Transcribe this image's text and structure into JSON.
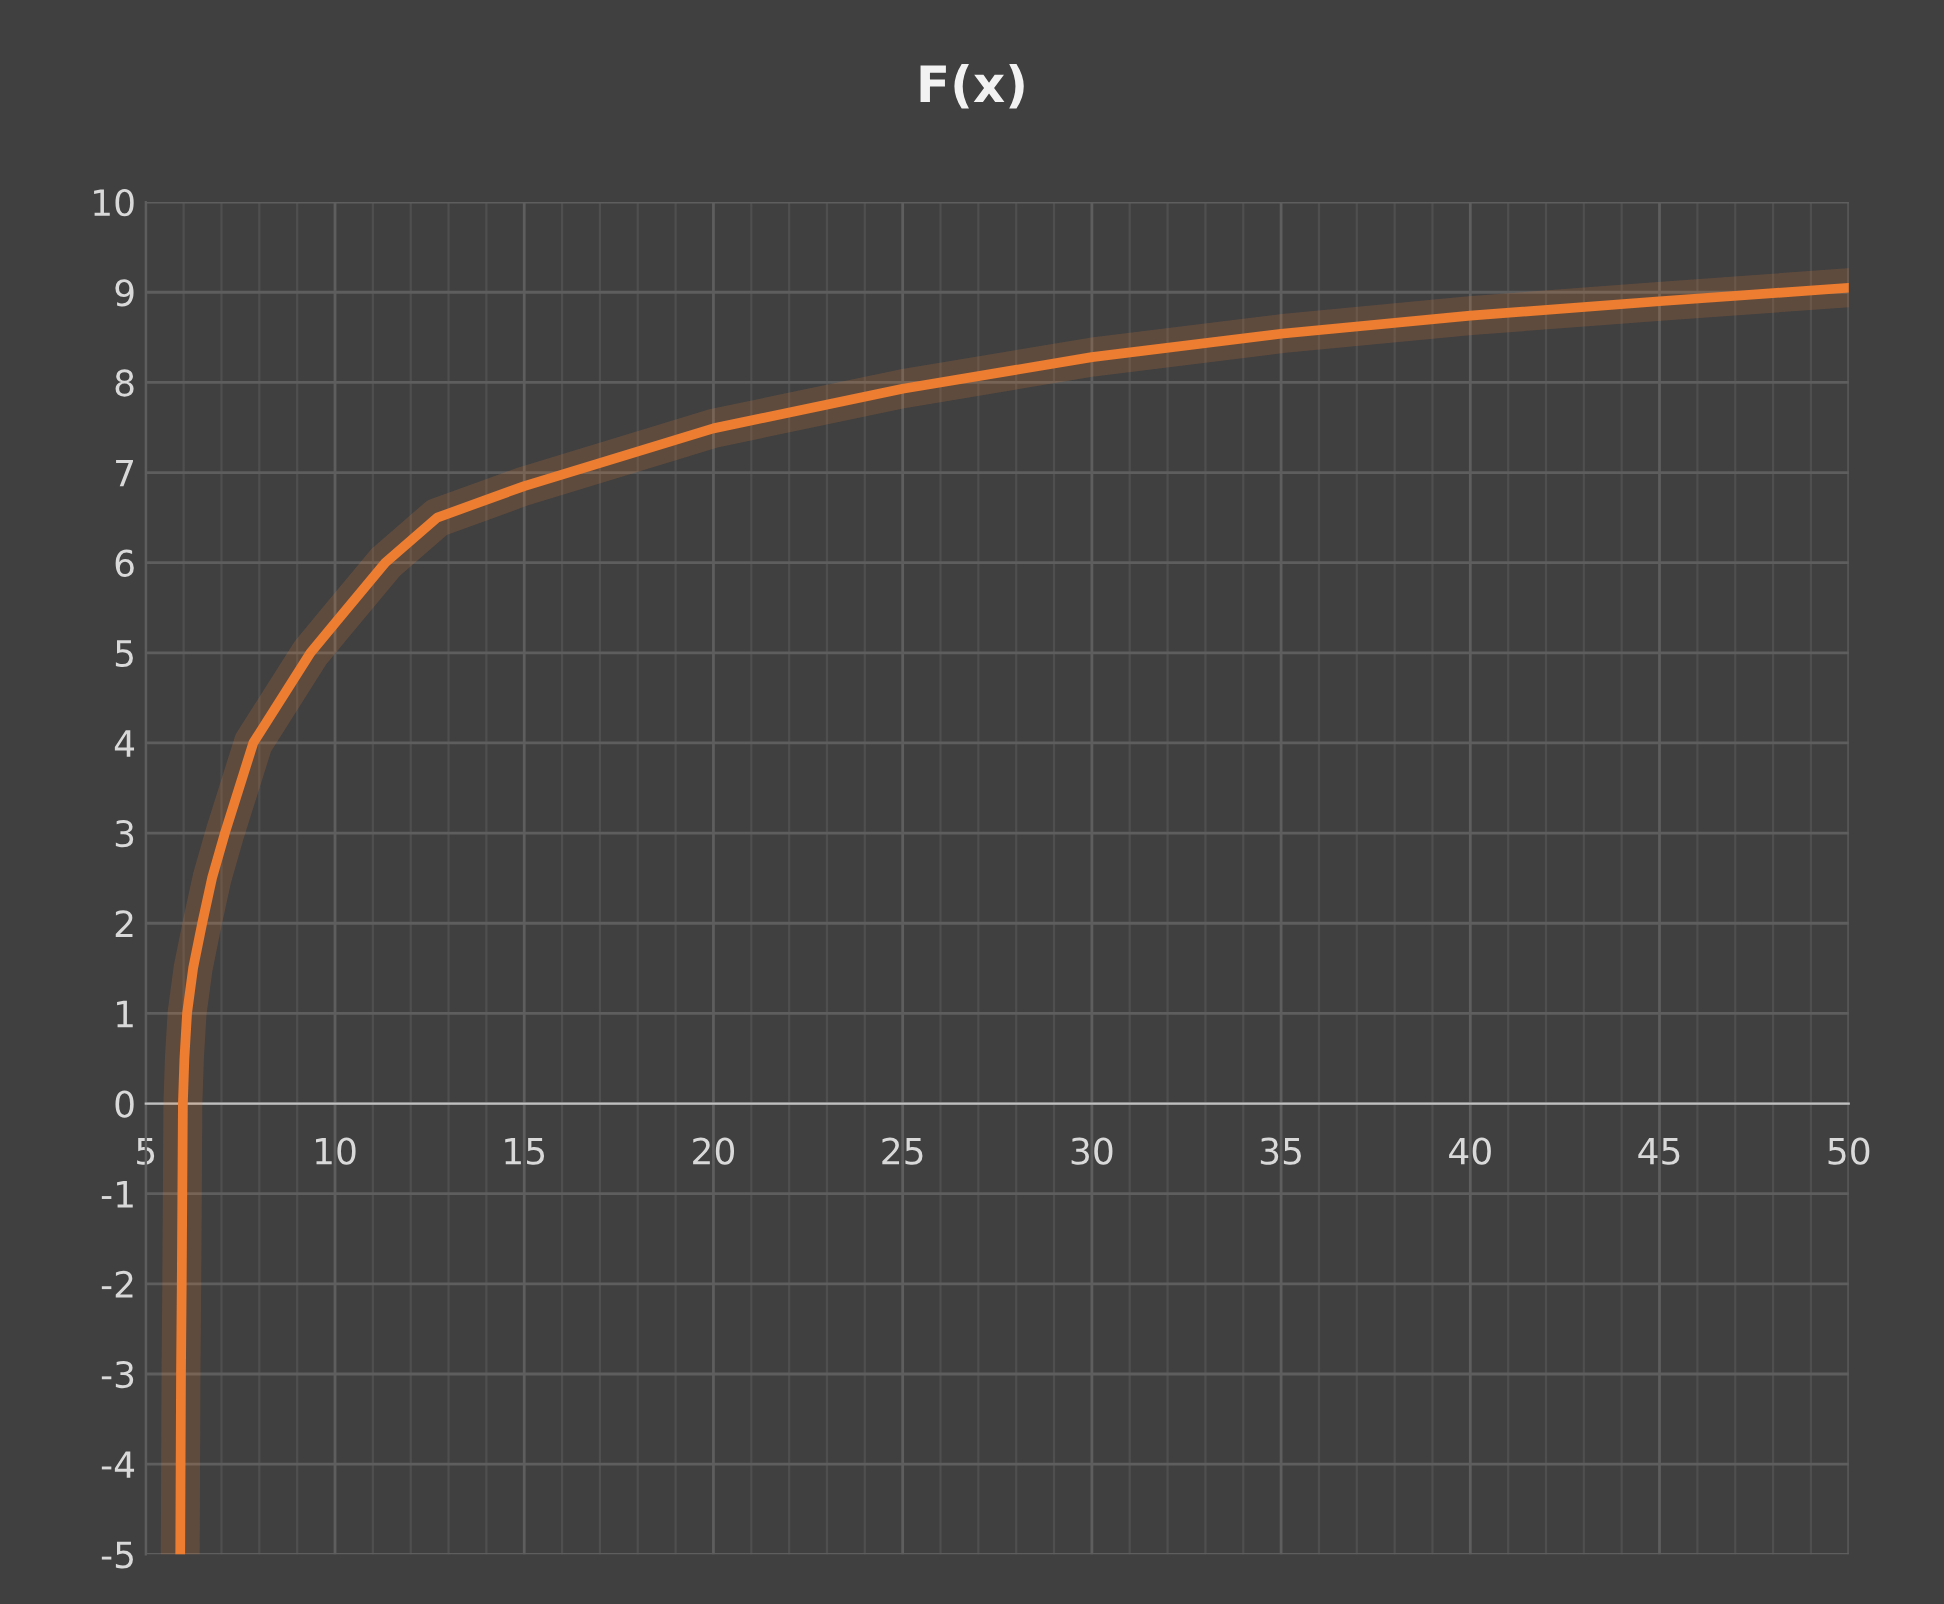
{
  "chart_data": {
    "type": "line",
    "title": "F(x)",
    "series": [
      {
        "color": "#ed7d31",
        "x": [
          5.91,
          5.93,
          5.95,
          5.98,
          6.02,
          6.09,
          6.25,
          6.49,
          6.75,
          7.09,
          7.84,
          9.35,
          10,
          11.33,
          12.7,
          15,
          20,
          25,
          30,
          35,
          40,
          45,
          50
        ],
        "values": [
          -5,
          -3,
          -2,
          0,
          0.5,
          1,
          1.5,
          2,
          2.5,
          3,
          4,
          5,
          5.33,
          6,
          6.5,
          6.85,
          7.49,
          7.93,
          8.28,
          8.54,
          8.74,
          8.9,
          9.05
        ]
      }
    ],
    "xlim": [
      5,
      50
    ],
    "xticks": [
      5,
      10,
      15,
      20,
      25,
      30,
      35,
      40,
      45,
      50
    ],
    "ylim": [
      -5,
      10
    ],
    "yticks": [
      -5,
      -4,
      -3,
      -2,
      -1,
      0,
      1,
      2,
      3,
      4,
      5,
      6,
      7,
      8,
      9,
      10
    ],
    "grid": true,
    "marker": "none",
    "line_style": "solid"
  }
}
